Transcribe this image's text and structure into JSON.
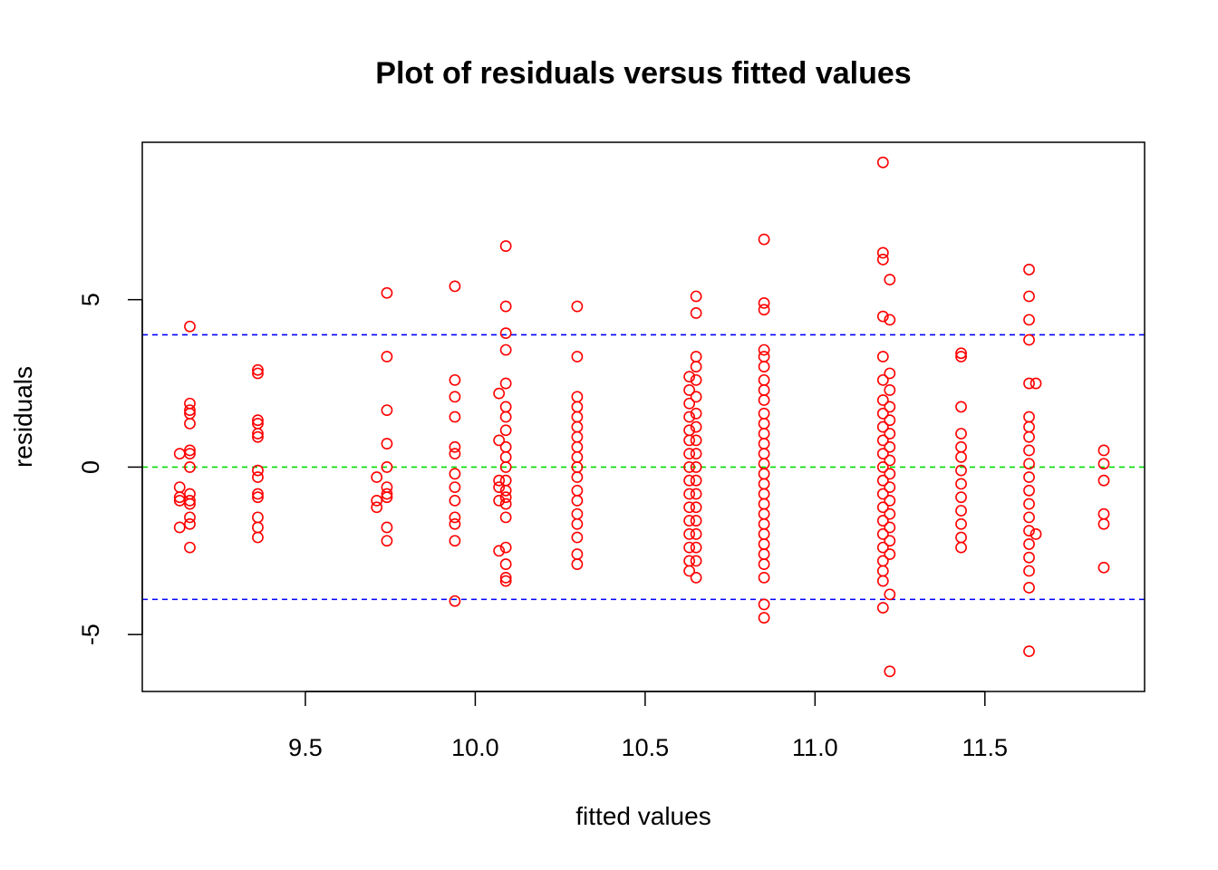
{
  "chart_data": {
    "type": "scatter",
    "title": "Plot of residuals versus fitted values",
    "xlabel": "fitted values",
    "ylabel": "residuals",
    "xlim": [
      9.02,
      11.97
    ],
    "ylim": [
      -6.7,
      9.7
    ],
    "x_ticks": [
      9.5,
      10.0,
      10.5,
      11.0,
      11.5
    ],
    "x_tick_labels": [
      "9.5",
      "10.0",
      "10.5",
      "11.0",
      "11.5"
    ],
    "y_ticks": [
      -5,
      0,
      5
    ],
    "y_tick_labels": [
      "-5",
      "0",
      "5"
    ],
    "point_color": "#ff0000",
    "reference_lines": [
      {
        "y": 3.95,
        "color": "#0000ff",
        "style": "dashed"
      },
      {
        "y": 0,
        "color": "#00dd00",
        "style": "dashed"
      },
      {
        "y": -3.95,
        "color": "#0000ff",
        "style": "dashed"
      }
    ],
    "points": [
      [
        9.13,
        0.4
      ],
      [
        9.13,
        -0.6
      ],
      [
        9.13,
        -0.9
      ],
      [
        9.13,
        -1.0
      ],
      [
        9.13,
        -1.8
      ],
      [
        9.16,
        4.2
      ],
      [
        9.16,
        1.9
      ],
      [
        9.16,
        1.7
      ],
      [
        9.16,
        1.6
      ],
      [
        9.16,
        1.3
      ],
      [
        9.16,
        0.5
      ],
      [
        9.16,
        0.4
      ],
      [
        9.16,
        0.0
      ],
      [
        9.16,
        -0.8
      ],
      [
        9.16,
        -1.0
      ],
      [
        9.16,
        -1.1
      ],
      [
        9.16,
        -1.5
      ],
      [
        9.16,
        -1.7
      ],
      [
        9.16,
        -2.4
      ],
      [
        9.36,
        2.9
      ],
      [
        9.36,
        2.8
      ],
      [
        9.36,
        1.4
      ],
      [
        9.36,
        1.3
      ],
      [
        9.36,
        1.0
      ],
      [
        9.36,
        0.9
      ],
      [
        9.36,
        -0.1
      ],
      [
        9.36,
        -0.3
      ],
      [
        9.36,
        -0.8
      ],
      [
        9.36,
        -0.9
      ],
      [
        9.36,
        -1.5
      ],
      [
        9.36,
        -1.8
      ],
      [
        9.36,
        -2.1
      ],
      [
        9.71,
        -0.3
      ],
      [
        9.71,
        -1.0
      ],
      [
        9.71,
        -1.2
      ],
      [
        9.74,
        5.2
      ],
      [
        9.74,
        3.3
      ],
      [
        9.74,
        1.7
      ],
      [
        9.74,
        0.7
      ],
      [
        9.74,
        0.0
      ],
      [
        9.74,
        -0.6
      ],
      [
        9.74,
        -0.8
      ],
      [
        9.74,
        -0.9
      ],
      [
        9.74,
        -1.8
      ],
      [
        9.74,
        -2.2
      ],
      [
        9.94,
        5.4
      ],
      [
        9.94,
        2.6
      ],
      [
        9.94,
        2.1
      ],
      [
        9.94,
        1.5
      ],
      [
        9.94,
        0.6
      ],
      [
        9.94,
        0.4
      ],
      [
        9.94,
        -0.2
      ],
      [
        9.94,
        -0.6
      ],
      [
        9.94,
        -1.0
      ],
      [
        9.94,
        -1.5
      ],
      [
        9.94,
        -1.7
      ],
      [
        9.94,
        -2.2
      ],
      [
        9.94,
        -4.0
      ],
      [
        10.07,
        2.2
      ],
      [
        10.07,
        0.8
      ],
      [
        10.07,
        -0.4
      ],
      [
        10.07,
        -0.6
      ],
      [
        10.07,
        -1.0
      ],
      [
        10.07,
        -2.5
      ],
      [
        10.09,
        6.6
      ],
      [
        10.09,
        4.8
      ],
      [
        10.09,
        4.0
      ],
      [
        10.09,
        3.5
      ],
      [
        10.09,
        2.5
      ],
      [
        10.09,
        1.8
      ],
      [
        10.09,
        1.5
      ],
      [
        10.09,
        1.1
      ],
      [
        10.09,
        0.6
      ],
      [
        10.09,
        0.3
      ],
      [
        10.09,
        0.0
      ],
      [
        10.09,
        -0.4
      ],
      [
        10.09,
        -0.7
      ],
      [
        10.09,
        -0.9
      ],
      [
        10.09,
        -1.1
      ],
      [
        10.09,
        -1.5
      ],
      [
        10.09,
        -2.4
      ],
      [
        10.09,
        -2.9
      ],
      [
        10.09,
        -3.3
      ],
      [
        10.09,
        -3.4
      ],
      [
        10.3,
        4.8
      ],
      [
        10.3,
        3.3
      ],
      [
        10.3,
        2.1
      ],
      [
        10.3,
        1.8
      ],
      [
        10.3,
        1.5
      ],
      [
        10.3,
        1.2
      ],
      [
        10.3,
        0.9
      ],
      [
        10.3,
        0.6
      ],
      [
        10.3,
        0.3
      ],
      [
        10.3,
        0.0
      ],
      [
        10.3,
        -0.3
      ],
      [
        10.3,
        -0.7
      ],
      [
        10.3,
        -1.0
      ],
      [
        10.3,
        -1.4
      ],
      [
        10.3,
        -1.7
      ],
      [
        10.3,
        -2.1
      ],
      [
        10.3,
        -2.6
      ],
      [
        10.3,
        -2.9
      ],
      [
        10.63,
        2.7
      ],
      [
        10.63,
        2.3
      ],
      [
        10.63,
        1.9
      ],
      [
        10.63,
        1.5
      ],
      [
        10.63,
        1.1
      ],
      [
        10.63,
        0.8
      ],
      [
        10.63,
        0.4
      ],
      [
        10.63,
        0.0
      ],
      [
        10.63,
        -0.4
      ],
      [
        10.63,
        -0.8
      ],
      [
        10.63,
        -1.2
      ],
      [
        10.63,
        -1.6
      ],
      [
        10.63,
        -2.0
      ],
      [
        10.63,
        -2.4
      ],
      [
        10.63,
        -2.8
      ],
      [
        10.63,
        -3.1
      ],
      [
        10.65,
        5.1
      ],
      [
        10.65,
        4.6
      ],
      [
        10.65,
        3.3
      ],
      [
        10.65,
        3.0
      ],
      [
        10.65,
        2.6
      ],
      [
        10.65,
        2.1
      ],
      [
        10.65,
        1.6
      ],
      [
        10.65,
        1.2
      ],
      [
        10.65,
        0.8
      ],
      [
        10.65,
        0.4
      ],
      [
        10.65,
        0.0
      ],
      [
        10.65,
        -0.4
      ],
      [
        10.65,
        -0.8
      ],
      [
        10.65,
        -1.2
      ],
      [
        10.65,
        -1.6
      ],
      [
        10.65,
        -2.0
      ],
      [
        10.65,
        -2.4
      ],
      [
        10.65,
        -2.8
      ],
      [
        10.65,
        -3.3
      ],
      [
        10.85,
        6.8
      ],
      [
        10.85,
        4.9
      ],
      [
        10.85,
        4.7
      ],
      [
        10.85,
        3.5
      ],
      [
        10.85,
        3.3
      ],
      [
        10.85,
        3.0
      ],
      [
        10.85,
        2.6
      ],
      [
        10.85,
        2.3
      ],
      [
        10.85,
        2.0
      ],
      [
        10.85,
        1.6
      ],
      [
        10.85,
        1.3
      ],
      [
        10.85,
        1.0
      ],
      [
        10.85,
        0.7
      ],
      [
        10.85,
        0.4
      ],
      [
        10.85,
        0.1
      ],
      [
        10.85,
        -0.2
      ],
      [
        10.85,
        -0.5
      ],
      [
        10.85,
        -0.8
      ],
      [
        10.85,
        -1.1
      ],
      [
        10.85,
        -1.4
      ],
      [
        10.85,
        -1.7
      ],
      [
        10.85,
        -2.0
      ],
      [
        10.85,
        -2.3
      ],
      [
        10.85,
        -2.6
      ],
      [
        10.85,
        -2.9
      ],
      [
        10.85,
        -3.3
      ],
      [
        10.85,
        -4.1
      ],
      [
        10.85,
        -4.5
      ],
      [
        11.2,
        9.1
      ],
      [
        11.2,
        6.4
      ],
      [
        11.2,
        6.2
      ],
      [
        11.2,
        4.5
      ],
      [
        11.2,
        3.3
      ],
      [
        11.2,
        2.6
      ],
      [
        11.2,
        2.0
      ],
      [
        11.2,
        1.6
      ],
      [
        11.2,
        1.2
      ],
      [
        11.2,
        0.8
      ],
      [
        11.2,
        0.4
      ],
      [
        11.2,
        0.0
      ],
      [
        11.2,
        -0.4
      ],
      [
        11.2,
        -0.8
      ],
      [
        11.2,
        -1.2
      ],
      [
        11.2,
        -1.6
      ],
      [
        11.2,
        -2.0
      ],
      [
        11.2,
        -2.4
      ],
      [
        11.2,
        -2.8
      ],
      [
        11.2,
        -3.1
      ],
      [
        11.2,
        -3.4
      ],
      [
        11.2,
        -4.2
      ],
      [
        11.22,
        5.6
      ],
      [
        11.22,
        4.4
      ],
      [
        11.22,
        2.8
      ],
      [
        11.22,
        2.3
      ],
      [
        11.22,
        1.8
      ],
      [
        11.22,
        1.4
      ],
      [
        11.22,
        1.0
      ],
      [
        11.22,
        0.6
      ],
      [
        11.22,
        0.2
      ],
      [
        11.22,
        -0.2
      ],
      [
        11.22,
        -0.6
      ],
      [
        11.22,
        -1.0
      ],
      [
        11.22,
        -1.4
      ],
      [
        11.22,
        -1.8
      ],
      [
        11.22,
        -2.2
      ],
      [
        11.22,
        -2.6
      ],
      [
        11.22,
        -3.8
      ],
      [
        11.22,
        -6.1
      ],
      [
        11.43,
        3.4
      ],
      [
        11.43,
        3.3
      ],
      [
        11.43,
        1.8
      ],
      [
        11.43,
        1.0
      ],
      [
        11.43,
        0.6
      ],
      [
        11.43,
        0.3
      ],
      [
        11.43,
        -0.1
      ],
      [
        11.43,
        -0.5
      ],
      [
        11.43,
        -0.9
      ],
      [
        11.43,
        -1.3
      ],
      [
        11.43,
        -1.7
      ],
      [
        11.43,
        -2.1
      ],
      [
        11.43,
        -2.4
      ],
      [
        11.63,
        5.9
      ],
      [
        11.63,
        5.1
      ],
      [
        11.63,
        4.4
      ],
      [
        11.63,
        3.8
      ],
      [
        11.63,
        2.5
      ],
      [
        11.63,
        1.5
      ],
      [
        11.63,
        1.2
      ],
      [
        11.63,
        0.9
      ],
      [
        11.63,
        0.5
      ],
      [
        11.63,
        0.1
      ],
      [
        11.63,
        -0.3
      ],
      [
        11.63,
        -0.7
      ],
      [
        11.63,
        -1.1
      ],
      [
        11.63,
        -1.5
      ],
      [
        11.63,
        -1.9
      ],
      [
        11.63,
        -2.3
      ],
      [
        11.63,
        -2.7
      ],
      [
        11.63,
        -3.1
      ],
      [
        11.63,
        -3.6
      ],
      [
        11.63,
        -5.5
      ],
      [
        11.65,
        2.5
      ],
      [
        11.65,
        -2.0
      ],
      [
        11.85,
        0.5
      ],
      [
        11.85,
        0.1
      ],
      [
        11.85,
        -0.4
      ],
      [
        11.85,
        -1.4
      ],
      [
        11.85,
        -1.7
      ],
      [
        11.85,
        -3.0
      ]
    ]
  }
}
